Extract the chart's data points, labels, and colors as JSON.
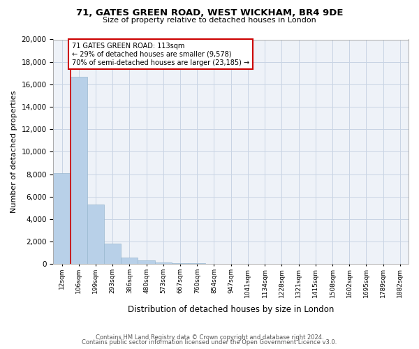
{
  "title1": "71, GATES GREEN ROAD, WEST WICKHAM, BR4 9DE",
  "title2": "Size of property relative to detached houses in London",
  "xlabel": "Distribution of detached houses by size in London",
  "ylabel": "Number of detached properties",
  "bin_labels": [
    "12sqm",
    "106sqm",
    "199sqm",
    "293sqm",
    "386sqm",
    "480sqm",
    "573sqm",
    "667sqm",
    "760sqm",
    "854sqm",
    "947sqm",
    "1041sqm",
    "1134sqm",
    "1228sqm",
    "1321sqm",
    "1415sqm",
    "1508sqm",
    "1602sqm",
    "1695sqm",
    "1789sqm",
    "1882sqm"
  ],
  "bar_values": [
    8100,
    16700,
    5300,
    1800,
    600,
    320,
    150,
    100,
    50,
    30,
    20,
    10,
    10,
    5,
    5,
    5,
    5,
    5,
    0,
    0,
    0
  ],
  "bar_color": "#b8d0e8",
  "bar_edge_color": "#9ab8d0",
  "grid_color": "#c8d4e4",
  "annotation_box_color": "#cc0000",
  "annotation_line_color": "#cc0000",
  "annotation_text_line1": "71 GATES GREEN ROAD: 113sqm",
  "annotation_text_line2": "← 29% of detached houses are smaller (9,578)",
  "annotation_text_line3": "70% of semi-detached houses are larger (23,185) →",
  "ylim": [
    0,
    20000
  ],
  "yticks": [
    0,
    2000,
    4000,
    6000,
    8000,
    10000,
    12000,
    14000,
    16000,
    18000,
    20000
  ],
  "footer1": "Contains HM Land Registry data © Crown copyright and database right 2024.",
  "footer2": "Contains public sector information licensed under the Open Government Licence v3.0.",
  "background_color": "#ffffff",
  "plot_bg_color": "#eef2f8"
}
